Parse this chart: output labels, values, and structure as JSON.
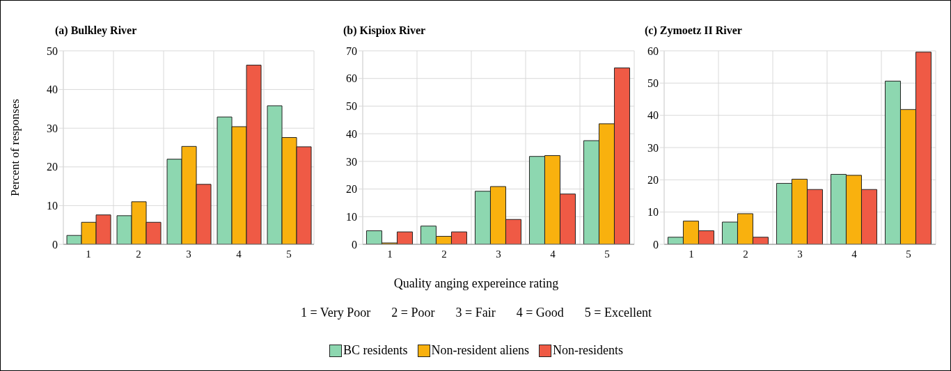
{
  "chart_data": [
    {
      "type": "bar",
      "title": "(a) Bulkley River",
      "ylabel": "Percent of responses",
      "categories": [
        "1",
        "2",
        "3",
        "4",
        "5"
      ],
      "ylim": [
        0,
        50
      ],
      "yticks": [
        0,
        10,
        20,
        30,
        40,
        50
      ],
      "grid": true,
      "series": [
        {
          "color": "#8dd7b0",
          "values": [
            2.3,
            7.4,
            22.0,
            32.9,
            35.8
          ]
        },
        {
          "color": "#f9b10e",
          "values": [
            5.7,
            11.0,
            25.3,
            30.4,
            27.6
          ]
        },
        {
          "color": "#ef5a45",
          "values": [
            7.6,
            5.7,
            15.5,
            46.3,
            25.2
          ]
        }
      ]
    },
    {
      "type": "bar",
      "title": "(b) Kispiox River",
      "xlabel": "Quality anging expereince rating",
      "annotations": [
        "1 = Very Poor",
        "2 = Poor",
        "3 = Fair",
        "4 = Good",
        "5 = Excellent"
      ],
      "legend": "bottom",
      "categories": [
        "1",
        "2",
        "3",
        "4",
        "5"
      ],
      "ylim": [
        0,
        70
      ],
      "yticks": [
        0,
        10,
        20,
        30,
        40,
        50,
        60,
        70
      ],
      "grid": true,
      "series": [
        {
          "name": "BC residents",
          "color": "#8dd7b0",
          "values": [
            4.9,
            6.6,
            19.2,
            31.8,
            37.5
          ]
        },
        {
          "name": "Non-resident aliens",
          "color": "#f9b10e",
          "values": [
            0.5,
            2.9,
            20.9,
            32.1,
            43.6
          ]
        },
        {
          "name": "Non-residents",
          "color": "#ef5a45",
          "values": [
            4.5,
            4.5,
            9.0,
            18.2,
            63.8
          ]
        }
      ]
    },
    {
      "type": "bar",
      "title": "(c) Zymoetz II River",
      "categories": [
        "1",
        "2",
        "3",
        "4",
        "5"
      ],
      "ylim": [
        0,
        60
      ],
      "yticks": [
        0,
        10,
        20,
        30,
        40,
        50,
        60
      ],
      "grid": true,
      "series": [
        {
          "color": "#8dd7b0",
          "values": [
            2.2,
            6.9,
            18.9,
            21.7,
            50.6
          ]
        },
        {
          "color": "#f9b10e",
          "values": [
            7.2,
            9.5,
            20.2,
            21.4,
            41.8
          ]
        },
        {
          "color": "#ef5a45",
          "values": [
            4.2,
            2.2,
            17.0,
            17.0,
            59.6
          ]
        }
      ]
    }
  ]
}
